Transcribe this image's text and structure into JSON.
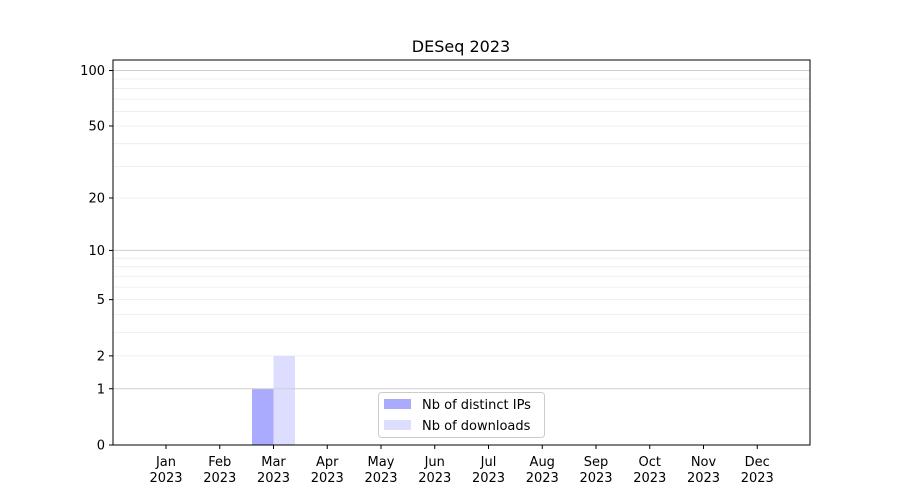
{
  "chart_data": {
    "type": "bar",
    "title": "DESeq 2023",
    "xlabel": "",
    "ylabel": "",
    "y_scale": "log(1+y)",
    "ylim": [
      0,
      114
    ],
    "y_ticks": [
      0,
      1,
      2,
      5,
      10,
      20,
      50,
      100
    ],
    "grid": true,
    "categories": [
      "Jan\n2023",
      "Feb\n2023",
      "Mar\n2023",
      "Apr\n2023",
      "May\n2023",
      "Jun\n2023",
      "Jul\n2023",
      "Aug\n2023",
      "Sep\n2023",
      "Oct\n2023",
      "Nov\n2023",
      "Dec\n2023"
    ],
    "series": [
      {
        "name": "Nb of distinct IPs",
        "color": "#aaaaff",
        "values": [
          0,
          0,
          1,
          0,
          0,
          0,
          0,
          0,
          0,
          0,
          0,
          0
        ]
      },
      {
        "name": "Nb of downloads",
        "color": "#ddddff",
        "values": [
          0,
          0,
          2,
          0,
          0,
          0,
          0,
          0,
          0,
          0,
          0,
          0
        ]
      }
    ],
    "legend_position": "lower-center"
  }
}
